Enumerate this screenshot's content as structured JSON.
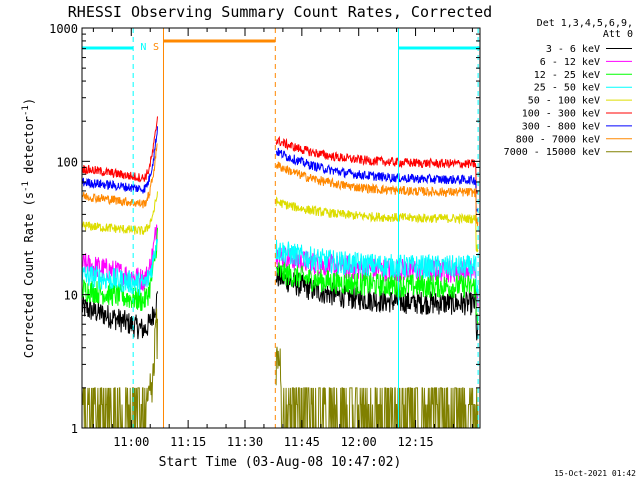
{
  "chart_data": {
    "type": "line",
    "title": "RHESSI Observing Summary Count Rates, Corrected",
    "xlabel": "Start Time (03-Aug-08 10:47:02)",
    "ylabel_main": "Corrected Count Rate (s",
    "ylabel_sup1": "-1",
    "ylabel_mid": " detector",
    "ylabel_sup2": "-1",
    "ylabel_end": ")",
    "y_scale": "log",
    "ylim": [
      1,
      1000
    ],
    "xlim_minutes": [
      0,
      105
    ],
    "x_tick_labels": [
      "11:00",
      "11:15",
      "11:30",
      "11:45",
      "12:00",
      "12:15"
    ],
    "x_tick_minutes": [
      13,
      28,
      43,
      58,
      73,
      88
    ],
    "y_tick_labels": [
      "1",
      "10",
      "100",
      "1000"
    ],
    "y_tick_values": [
      1,
      10,
      100,
      1000
    ],
    "legend_header": [
      "Det 1,3,4,5,6,9,",
      "Att 0"
    ],
    "legend_position": "right",
    "timestamp": "15-Oct-2021 01:42",
    "annotations": [
      {
        "label": "N",
        "color": "#00ffff",
        "minute": 17
      },
      {
        "label": "S",
        "color": "#ff8800",
        "minute": 19
      }
    ],
    "gap_minutes": [
      20,
      51
    ],
    "night_intervals": [
      [
        0,
        13.5
      ],
      [
        83.5,
        105
      ]
    ],
    "saa_interval": [
      21.5,
      51
    ],
    "series": [
      {
        "name": "3 - 6 keV",
        "color": "#000000",
        "pre": [
          8,
          5.5
        ],
        "peak": 10,
        "post": [
          14,
          8.5
        ]
      },
      {
        "name": "6 - 12 keV",
        "color": "#ff00ff",
        "pre": [
          17,
          13
        ],
        "peak": 40,
        "post": [
          20,
          15
        ]
      },
      {
        "name": "12 - 25 keV",
        "color": "#00ff00",
        "pre": [
          11,
          9
        ],
        "peak": 30,
        "post": [
          15,
          11.5
        ]
      },
      {
        "name": "25 - 50 keV",
        "color": "#00ffff",
        "pre": [
          14,
          12
        ],
        "peak": 30,
        "post": [
          22,
          16
        ]
      },
      {
        "name": "50 - 100 keV",
        "color": "#dddd00",
        "pre": [
          33,
          30
        ],
        "peak": 60,
        "post": [
          50,
          37
        ]
      },
      {
        "name": "100 - 300 keV",
        "color": "#ff0000",
        "pre": [
          88,
          75
        ],
        "peak": 230,
        "post": [
          145,
          95
        ]
      },
      {
        "name": "300 - 800 keV",
        "color": "#0000ff",
        "pre": [
          70,
          62
        ],
        "peak": 190,
        "post": [
          120,
          72
        ]
      },
      {
        "name": "800 - 7000 keV",
        "color": "#ff8800",
        "pre": [
          55,
          48
        ],
        "peak": 150,
        "post": [
          95,
          58
        ]
      },
      {
        "name": "7000 - 15000 keV",
        "color": "#808000",
        "pre": [
          1.5,
          1.2
        ],
        "peak": 8,
        "post": [
          2.5,
          1.3
        ]
      }
    ]
  }
}
